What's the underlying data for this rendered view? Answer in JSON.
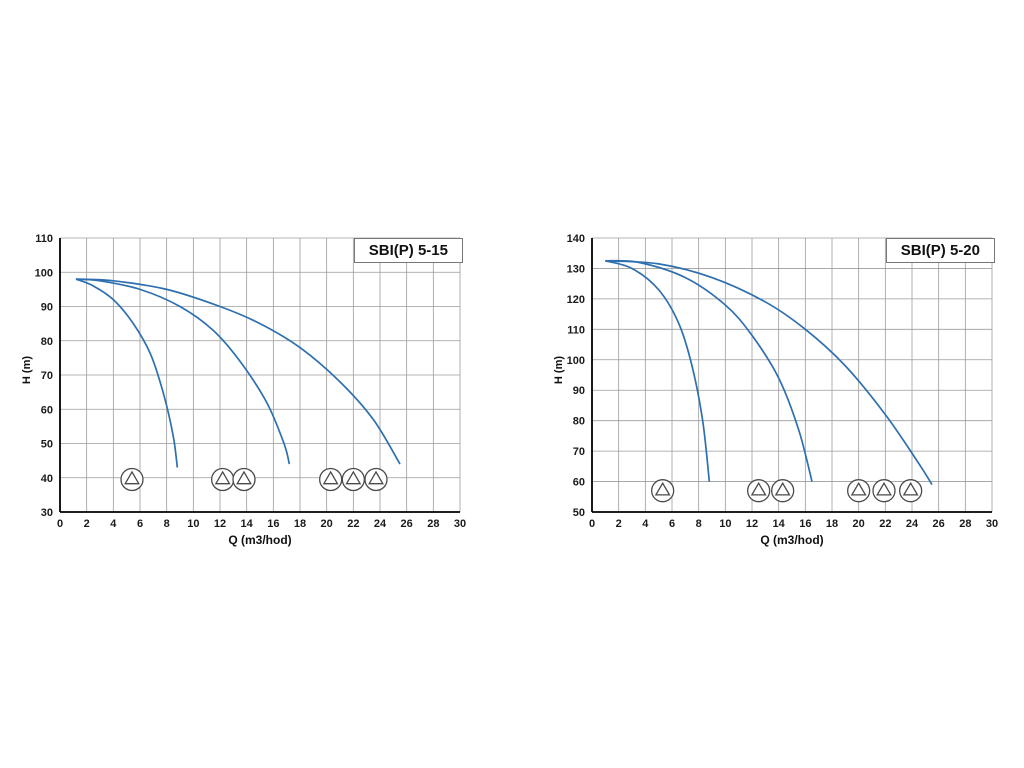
{
  "chart_data": [
    {
      "type": "line",
      "title": "SBI(P) 5-15",
      "xlabel": "Q (m3/hod)",
      "ylabel": "H (m)",
      "xlim": [
        0,
        30
      ],
      "xtick_step": 2,
      "xtick_labels": [
        "0",
        "2",
        "4",
        "6",
        "8",
        "10",
        "12",
        "14",
        "16",
        "18",
        "20",
        "22",
        "24",
        "26",
        "28",
        "30"
      ],
      "ylim": [
        30,
        110
      ],
      "ytick_step": 10,
      "ytick_labels": [
        "30",
        "40",
        "50",
        "60",
        "70",
        "80",
        "90",
        "100",
        "110"
      ],
      "grid": true,
      "curve_color": "#2e6fb0",
      "series": [
        {
          "name": "1-pump-curve",
          "points": [
            [
              1.2,
              98
            ],
            [
              2.5,
              96
            ],
            [
              4,
              92
            ],
            [
              5.5,
              85
            ],
            [
              6.8,
              76
            ],
            [
              7.8,
              64
            ],
            [
              8.5,
              52
            ],
            [
              8.8,
              43
            ]
          ]
        },
        {
          "name": "2-pump-curve",
          "points": [
            [
              1.2,
              98
            ],
            [
              3,
              97.5
            ],
            [
              6,
              95
            ],
            [
              9,
              90
            ],
            [
              11.5,
              83
            ],
            [
              13.5,
              74
            ],
            [
              15.5,
              62
            ],
            [
              16.8,
              50
            ],
            [
              17.2,
              44
            ]
          ]
        },
        {
          "name": "3-pump-curve",
          "points": [
            [
              1.2,
              98
            ],
            [
              4,
              97.5
            ],
            [
              8,
              95
            ],
            [
              12,
              90
            ],
            [
              15,
              85
            ],
            [
              18,
              78
            ],
            [
              21,
              68
            ],
            [
              23.5,
              57
            ],
            [
              25.5,
              44
            ]
          ]
        }
      ],
      "pump_groups": [
        {
          "count": 1,
          "x": [
            5.4
          ],
          "y": 39.5
        },
        {
          "count": 2,
          "x": [
            12.2,
            13.8
          ],
          "y": 39.5
        },
        {
          "count": 3,
          "x": [
            20.3,
            22.0,
            23.7
          ],
          "y": 39.5
        }
      ]
    },
    {
      "type": "line",
      "title": "SBI(P) 5-20",
      "xlabel": "Q (m3/hod)",
      "ylabel": "H (m)",
      "xlim": [
        0,
        30
      ],
      "xtick_step": 2,
      "xtick_labels": [
        "0",
        "2",
        "4",
        "6",
        "8",
        "10",
        "12",
        "14",
        "16",
        "18",
        "20",
        "22",
        "24",
        "26",
        "28",
        "30"
      ],
      "ylim": [
        50,
        140
      ],
      "ytick_step": 10,
      "ytick_labels": [
        "50",
        "60",
        "70",
        "80",
        "90",
        "100",
        "110",
        "120",
        "130",
        "140"
      ],
      "grid": true,
      "curve_color": "#2e6fb0",
      "series": [
        {
          "name": "1-pump-curve",
          "points": [
            [
              1,
              132.5
            ],
            [
              3,
              130
            ],
            [
              5,
              123
            ],
            [
              6.5,
              112
            ],
            [
              7.5,
              98
            ],
            [
              8.3,
              80
            ],
            [
              8.8,
              60
            ]
          ]
        },
        {
          "name": "2-pump-curve",
          "points": [
            [
              1,
              132.5
            ],
            [
              3.5,
              132
            ],
            [
              7,
              127
            ],
            [
              10,
              118
            ],
            [
              12,
              108
            ],
            [
              14,
              94
            ],
            [
              15.5,
              77
            ],
            [
              16.5,
              60
            ]
          ]
        },
        {
          "name": "3-pump-curve",
          "points": [
            [
              1,
              132.5
            ],
            [
              5,
              131.5
            ],
            [
              9,
              127
            ],
            [
              13,
              119
            ],
            [
              16,
              110
            ],
            [
              19,
              98
            ],
            [
              22,
              82
            ],
            [
              24.5,
              66
            ],
            [
              25.5,
              59
            ]
          ]
        }
      ],
      "pump_groups": [
        {
          "count": 1,
          "x": [
            5.3
          ],
          "y": 57
        },
        {
          "count": 2,
          "x": [
            12.5,
            14.3
          ],
          "y": 57
        },
        {
          "count": 3,
          "x": [
            20.0,
            21.9,
            23.9
          ],
          "y": 57
        }
      ]
    }
  ]
}
